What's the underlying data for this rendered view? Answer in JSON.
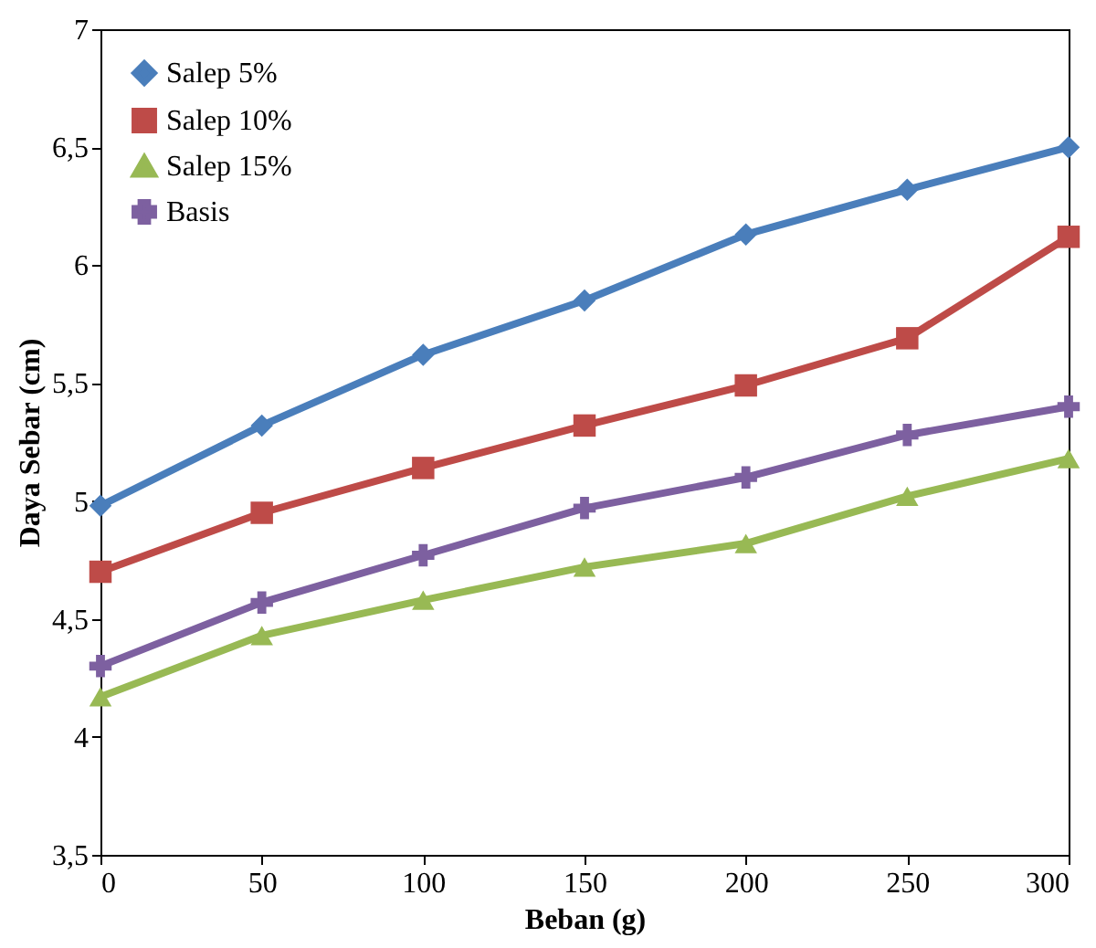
{
  "chart_data": {
    "type": "line",
    "xlabel": "Beban (g)",
    "ylabel": "Daya Sebar (cm)",
    "x": [
      0,
      50,
      100,
      150,
      200,
      250,
      300
    ],
    "series": [
      {
        "name": "Salep 5%",
        "color": "#4a7ebb",
        "marker": "diamond",
        "values": [
          4.98,
          5.32,
          5.62,
          5.85,
          6.13,
          6.32,
          6.5
        ]
      },
      {
        "name": "Salep 10%",
        "color": "#be4b48",
        "marker": "square",
        "values": [
          4.7,
          4.95,
          5.14,
          5.32,
          5.49,
          5.69,
          6.12
        ]
      },
      {
        "name": "Salep 15%",
        "color": "#98b954",
        "marker": "triangle",
        "values": [
          4.17,
          4.43,
          4.58,
          4.72,
          4.82,
          5.02,
          5.18
        ]
      },
      {
        "name": "Basis",
        "color": "#7d60a0",
        "marker": "cross",
        "values": [
          4.3,
          4.57,
          4.77,
          4.97,
          5.1,
          5.28,
          5.4
        ]
      }
    ],
    "xlim": [
      0,
      300
    ],
    "xticks": [
      0,
      50,
      100,
      150,
      200,
      250,
      300
    ],
    "ylim": [
      3.5,
      7
    ],
    "yticks": [
      {
        "value": 3.5,
        "label": "3,5"
      },
      4,
      {
        "value": 4.5,
        "label": "4,5"
      },
      5,
      {
        "value": 5.5,
        "label": "5,5"
      },
      6,
      {
        "value": 6.5,
        "label": "6,5"
      },
      7
    ],
    "grid": false,
    "legend": "top left",
    "line_style": "solid"
  }
}
